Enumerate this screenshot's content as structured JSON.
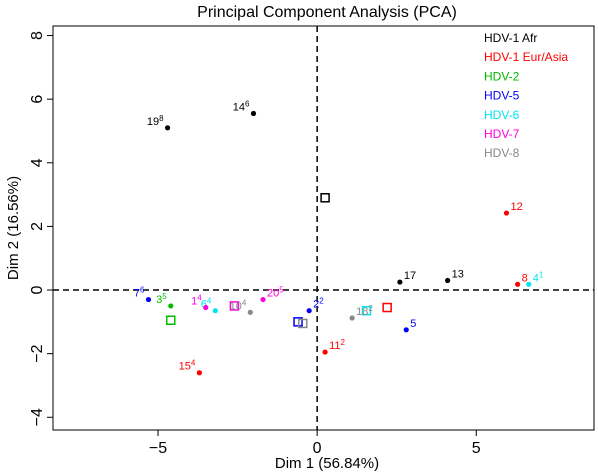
{
  "chart_data": {
    "type": "scatter",
    "title": "Principal Component Analysis (PCA)",
    "xlabel": "Dim 1 (56.84%)",
    "ylabel": "Dim 2 (16.56%)",
    "xlim": [
      -8.3,
      8.7
    ],
    "ylim": [
      -4.4,
      8.3
    ],
    "x_ticks": [
      -5,
      0,
      5
    ],
    "x_tick_labels": [
      "−5",
      "0",
      "5"
    ],
    "y_ticks": [
      -4,
      -2,
      0,
      2,
      4,
      6,
      8
    ],
    "y_tick_labels": [
      "−4",
      "−2",
      "0",
      "2",
      "4",
      "6",
      "8"
    ],
    "grid": false,
    "legend_position": "top-right",
    "reference_lines": {
      "x": 0,
      "y": 0
    },
    "series": [
      {
        "name": "HDV-1 Afr",
        "color": "#000000",
        "points": [
          {
            "x": -4.7,
            "y": 5.1,
            "label": "19",
            "sup": "8"
          },
          {
            "x": -2.0,
            "y": 5.55,
            "label": "14",
            "sup": "6"
          },
          {
            "x": 2.6,
            "y": 0.25,
            "label": "17",
            "sup": ""
          },
          {
            "x": 4.1,
            "y": 0.3,
            "label": "13",
            "sup": ""
          }
        ]
      },
      {
        "name": "HDV-1 Eur/Asia",
        "color": "#ff0000",
        "points": [
          {
            "x": 5.95,
            "y": 2.42,
            "label": "12",
            "sup": ""
          },
          {
            "x": 6.3,
            "y": 0.18,
            "label": "8",
            "sup": ""
          },
          {
            "x": -3.7,
            "y": -2.6,
            "label": "15",
            "sup": "4"
          },
          {
            "x": 0.25,
            "y": -1.95,
            "label": "11",
            "sup": "2"
          }
        ]
      },
      {
        "name": "HDV-2",
        "color": "#00bb00",
        "points": [
          {
            "x": -4.6,
            "y": -0.5,
            "label": "3",
            "sup": "5"
          }
        ]
      },
      {
        "name": "HDV-5",
        "color": "#0000ff",
        "points": [
          {
            "x": -5.3,
            "y": -0.3,
            "label": "7",
            "sup": "6"
          },
          {
            "x": -0.25,
            "y": -0.65,
            "label": "2",
            "sup": "2"
          },
          {
            "x": 2.8,
            "y": -1.25,
            "label": "5",
            "sup": ""
          }
        ]
      },
      {
        "name": "HDV-6",
        "color": "#00e5ee",
        "points": [
          {
            "x": -3.2,
            "y": -0.65,
            "label": "6",
            "sup": "4"
          },
          {
            "x": 6.65,
            "y": 0.18,
            "label": "4",
            "sup": "1"
          }
        ]
      },
      {
        "name": "HDV-7",
        "color": "#ff00dd",
        "points": [
          {
            "x": -3.5,
            "y": -0.55,
            "label": "1",
            "sup": "4"
          },
          {
            "x": -1.7,
            "y": -0.3,
            "label": "20",
            "sup": "5"
          }
        ]
      },
      {
        "name": "HDV-8",
        "color": "#888888",
        "points": [
          {
            "x": -2.1,
            "y": -0.7,
            "label": "10",
            "sup": "4"
          },
          {
            "x": 1.1,
            "y": -0.88,
            "label": "18",
            "sup": "2"
          }
        ]
      }
    ],
    "centroids": [
      {
        "series": "HDV-1 Afr",
        "x": 0.25,
        "y": 2.9
      },
      {
        "series": "HDV-1 Eur/Asia",
        "x": 2.2,
        "y": -0.55
      },
      {
        "series": "HDV-2",
        "x": -4.6,
        "y": -0.95
      },
      {
        "series": "HDV-5",
        "x": -0.6,
        "y": -1.0
      },
      {
        "series": "HDV-6",
        "x": 1.55,
        "y": -0.65
      },
      {
        "series": "HDV-7",
        "x": -2.6,
        "y": -0.5
      },
      {
        "series": "HDV-8",
        "x": -0.45,
        "y": -1.05
      }
    ]
  }
}
